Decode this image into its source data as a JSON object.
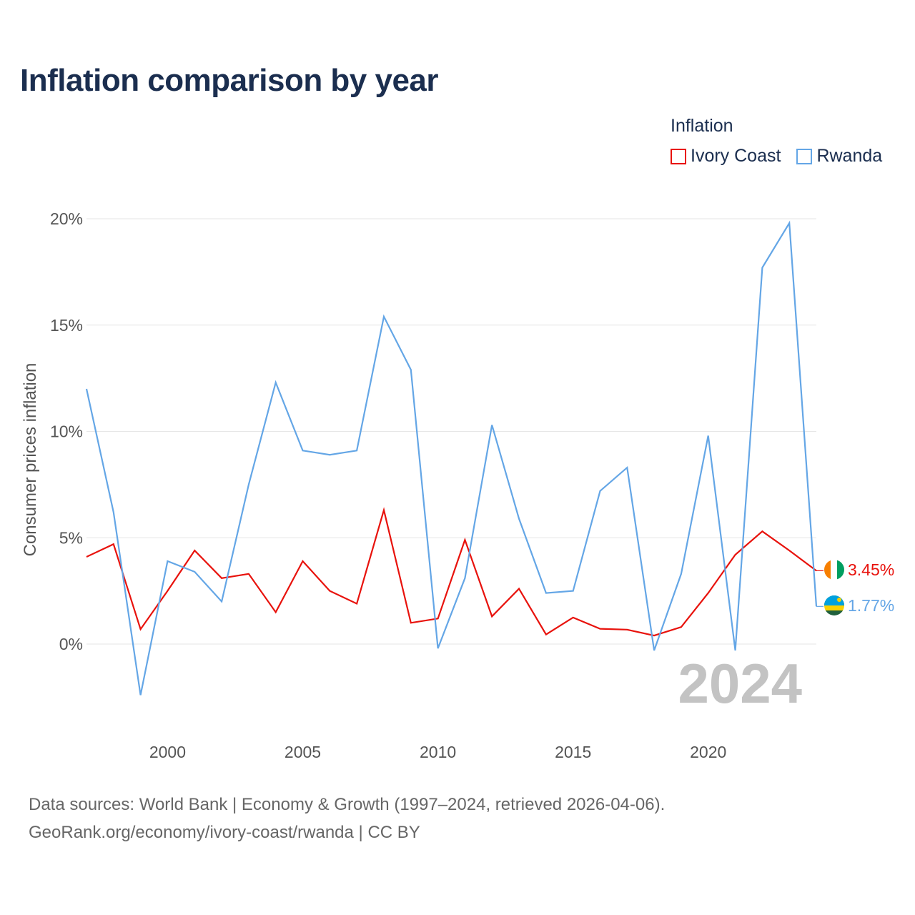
{
  "title": "Inflation comparison by year",
  "legend": {
    "title": "Inflation",
    "items": [
      {
        "name": "Ivory Coast",
        "color": "#e8120c"
      },
      {
        "name": "Rwanda",
        "color": "#64a6e6"
      }
    ]
  },
  "year_label": "2024",
  "end_labels": {
    "ivory_coast": "3.45%",
    "rwanda": "1.77%"
  },
  "footer": {
    "line1": "Data sources: World Bank | Economy & Growth (1997–2024, retrieved 2026-04-06).",
    "line2": "GeoRank.org/economy/ivory-coast/rwanda | CC BY"
  },
  "chart_data": {
    "type": "line",
    "title": "Inflation comparison by year",
    "xlabel": "",
    "ylabel": "Consumer prices inflation",
    "x": [
      1997,
      1998,
      1999,
      2000,
      2001,
      2002,
      2003,
      2004,
      2005,
      2006,
      2007,
      2008,
      2009,
      2010,
      2011,
      2012,
      2013,
      2014,
      2015,
      2016,
      2017,
      2018,
      2019,
      2020,
      2021,
      2022,
      2023,
      2024
    ],
    "xlim": [
      1997,
      2024
    ],
    "ylim": [
      -3.8,
      20
    ],
    "x_ticks": [
      2000,
      2005,
      2010,
      2015,
      2020
    ],
    "y_ticks": [
      0,
      5,
      10,
      15,
      20
    ],
    "y_tick_labels": [
      "0%",
      "5%",
      "10%",
      "15%",
      "20%"
    ],
    "grid": true,
    "legend_position": "top-right",
    "series": [
      {
        "name": "Ivory Coast",
        "color": "#e8120c",
        "values": [
          4.1,
          4.7,
          0.7,
          2.5,
          4.4,
          3.1,
          3.3,
          1.5,
          3.9,
          2.5,
          1.9,
          6.3,
          1.0,
          1.2,
          4.9,
          1.3,
          2.6,
          0.45,
          1.25,
          0.72,
          0.68,
          0.4,
          0.8,
          2.4,
          4.2,
          5.3,
          4.4,
          3.45
        ]
      },
      {
        "name": "Rwanda",
        "color": "#64a6e6",
        "values": [
          12.0,
          6.2,
          -2.4,
          3.9,
          3.4,
          2.0,
          7.5,
          12.3,
          9.1,
          8.9,
          9.1,
          15.4,
          12.9,
          -0.2,
          3.1,
          10.3,
          5.9,
          2.4,
          2.5,
          7.2,
          8.3,
          -0.3,
          3.3,
          9.8,
          -0.3,
          17.7,
          19.8,
          1.77
        ]
      }
    ]
  }
}
